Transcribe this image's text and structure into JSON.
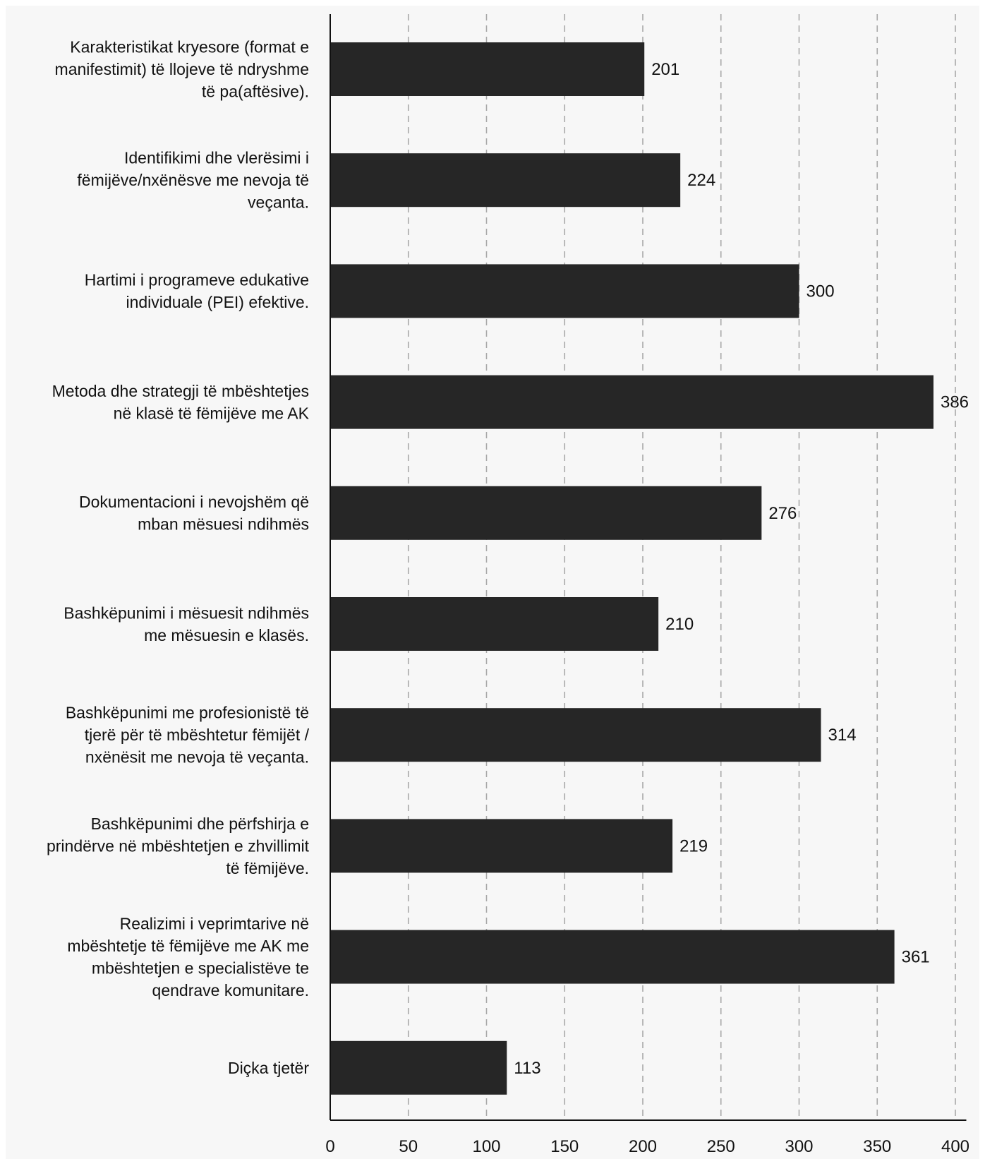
{
  "chart_data": {
    "type": "bar",
    "orientation": "horizontal",
    "categories": [
      [
        "Karakteristikat kryesore (format e",
        "manifestimit) të llojeve të ndryshme",
        "të pa(aftësive)."
      ],
      [
        "Identifikimi dhe vlerësimi i",
        "fëmijëve/nxënësve me nevoja të",
        "veçanta."
      ],
      [
        "Hartimi i programeve edukative",
        "individuale (PEI) efektive."
      ],
      [
        "Metoda dhe strategji të mbështetjes",
        "në klasë të fëmijëve me AK"
      ],
      [
        "Dokumentacioni i nevojshëm që",
        "mban mësuesi ndihmës"
      ],
      [
        "Bashkëpunimi i mësuesit ndihmës",
        "me mësuesin e klasës."
      ],
      [
        "Bashkëpunimi me profesionistë të",
        "tjerë për të mbështetur fëmijët /",
        "nxënësit me nevoja të veçanta."
      ],
      [
        "Bashkëpunimi dhe përfshirja e",
        "prindërve në mbështetjen e zhvillimit",
        "të fëmijëve."
      ],
      [
        "Realizimi i veprimtarive në",
        "mbështetje të fëmijëve me AK me",
        "mbështetjen e specialistëve te",
        "qendrave komunitare."
      ],
      [
        "Diçka tjetër"
      ]
    ],
    "values": [
      201,
      224,
      300,
      386,
      276,
      210,
      314,
      219,
      361,
      113
    ],
    "value_labels": [
      "201",
      "224",
      "300",
      "386",
      "276",
      "210",
      "314",
      "219",
      "361",
      "113"
    ],
    "x_ticks": [
      "0",
      "50",
      "100",
      "150",
      "200",
      "250",
      "300",
      "350",
      "400"
    ],
    "xlim": [
      0,
      407
    ],
    "grid": "vertical dashed",
    "bar_color": "#262626",
    "background_color": "#f7f7f7",
    "title": "",
    "xlabel": "",
    "ylabel": ""
  }
}
